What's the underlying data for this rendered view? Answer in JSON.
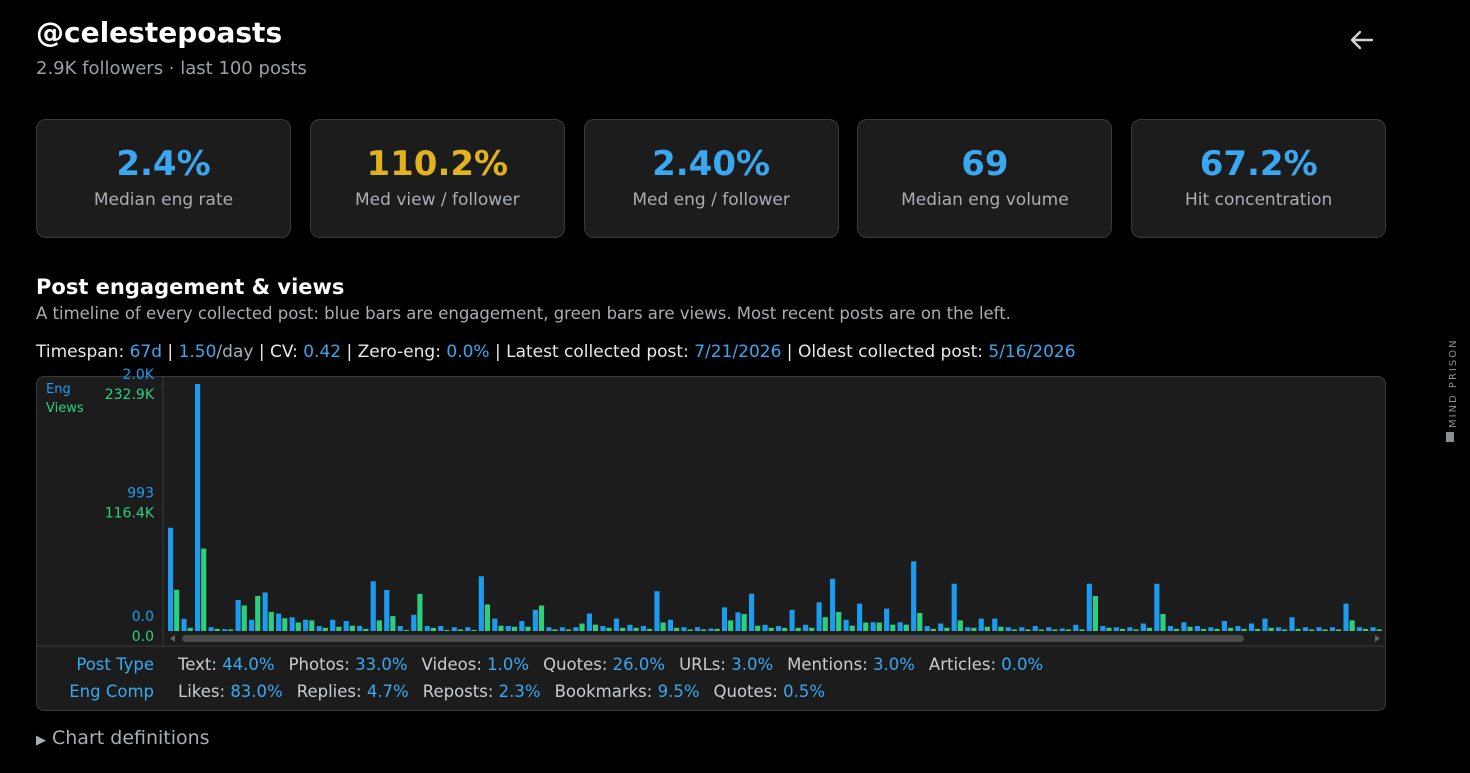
{
  "header": {
    "handle": "@celestepoasts",
    "subtitle": "2.9K followers · last 100 posts"
  },
  "stats": [
    {
      "value": "2.4%",
      "label": "Median eng rate",
      "color": "#3aa8f0"
    },
    {
      "value": "110.2%",
      "label": "Med view / follower",
      "color": "#e0b21e"
    },
    {
      "value": "2.40%",
      "label": "Med eng / follower",
      "color": "#3aa8f0"
    },
    {
      "value": "69",
      "label": "Median eng volume",
      "color": "#3aa8f0"
    },
    {
      "value": "67.2%",
      "label": "Hit concentration",
      "color": "#3aa8f0"
    }
  ],
  "section": {
    "title": "Post engagement & views",
    "description": "A timeline of every collected post: blue bars are engagement, green bars are views. Most recent posts are on the left.",
    "meta": [
      {
        "label": "Timespan:",
        "value": "67d"
      },
      {
        "label": "",
        "value": "1.50",
        "suffix": "/day"
      },
      {
        "label": "CV:",
        "value": "0.42"
      },
      {
        "label": "Zero-eng:",
        "value": "0.0%"
      },
      {
        "label": "Latest collected post:",
        "value": "7/21/2026"
      },
      {
        "label": "Oldest collected post:",
        "value": "5/16/2026"
      }
    ]
  },
  "chart_data": {
    "type": "bar",
    "ylabel": "Eng",
    "y2label": "Views",
    "ylim": [
      0,
      1986
    ],
    "yticks": [
      {
        "value": 0,
        "label": "0.0"
      },
      993,
      {
        "value": 1986,
        "label": "2.0K"
      }
    ],
    "y2lim": [
      0,
      232900
    ],
    "y2ticks": [
      {
        "value": 0,
        "label": "0.0"
      },
      {
        "value": 116400,
        "label": "116.4K"
      },
      {
        "value": 232900,
        "label": "232.9K"
      }
    ],
    "series": [
      {
        "name": "Eng",
        "color": "#1d9bf0",
        "values": [
          830,
          97,
          1986,
          30,
          15,
          250,
          90,
          310,
          140,
          110,
          90,
          40,
          90,
          80,
          40,
          400,
          330,
          40,
          130,
          40,
          40,
          30,
          30,
          440,
          100,
          40,
          80,
          170,
          30,
          30,
          30,
          140,
          40,
          100,
          50,
          40,
          320,
          90,
          30,
          30,
          20,
          190,
          150,
          300,
          50,
          40,
          170,
          50,
          230,
          420,
          90,
          220,
          70,
          180,
          70,
          560,
          40,
          60,
          380,
          30,
          100,
          100,
          30,
          30,
          40,
          30,
          20,
          50,
          380,
          40,
          30,
          30,
          60,
          380,
          40,
          70,
          40,
          30,
          80,
          40,
          60,
          100,
          30,
          110,
          30,
          30,
          30,
          220,
          30,
          30
        ]
      },
      {
        "name": "Views",
        "color": "#2bd07f",
        "axis": "y2",
        "values": [
          38800,
          3000,
          77700,
          2000,
          1500,
          24000,
          33000,
          18000,
          12000,
          8000,
          10000,
          3000,
          4000,
          5000,
          2000,
          10000,
          14000,
          1000,
          35000,
          3000,
          1000,
          1500,
          1000,
          25000,
          5000,
          4000,
          4000,
          24000,
          1500,
          1500,
          7000,
          6000,
          3000,
          3000,
          3000,
          2000,
          8000,
          3000,
          1500,
          1500,
          2000,
          10000,
          16000,
          5000,
          3000,
          3000,
          3000,
          3000,
          13000,
          18000,
          5000,
          8000,
          8000,
          6000,
          6000,
          17000,
          2000,
          3000,
          10000,
          3000,
          4000,
          4000,
          1500,
          1500,
          1500,
          1500,
          1500,
          1500,
          33000,
          3000,
          2000,
          1500,
          3000,
          16000,
          2000,
          4000,
          2000,
          2000,
          3000,
          2000,
          2000,
          3000,
          1500,
          2000,
          1500,
          1500,
          1500,
          10000,
          2000,
          1500
        ]
      }
    ]
  },
  "breakdown": [
    {
      "label": "Post Type",
      "items": [
        {
          "label": "Text:",
          "value": "44.0%"
        },
        {
          "label": "Photos:",
          "value": "33.0%"
        },
        {
          "label": "Videos:",
          "value": "1.0%"
        },
        {
          "label": "Quotes:",
          "value": "26.0%"
        },
        {
          "label": "URLs:",
          "value": "3.0%"
        },
        {
          "label": "Mentions:",
          "value": "3.0%"
        },
        {
          "label": "Articles:",
          "value": "0.0%"
        }
      ]
    },
    {
      "label": "Eng Comp",
      "items": [
        {
          "label": "Likes:",
          "value": "83.0%"
        },
        {
          "label": "Replies:",
          "value": "4.7%"
        },
        {
          "label": "Reposts:",
          "value": "2.3%"
        },
        {
          "label": "Bookmarks:",
          "value": "9.5%"
        },
        {
          "label": "Quotes:",
          "value": "0.5%"
        }
      ]
    }
  ],
  "footer": {
    "toggle": "Chart definitions"
  },
  "brand": "MIND PRISON"
}
